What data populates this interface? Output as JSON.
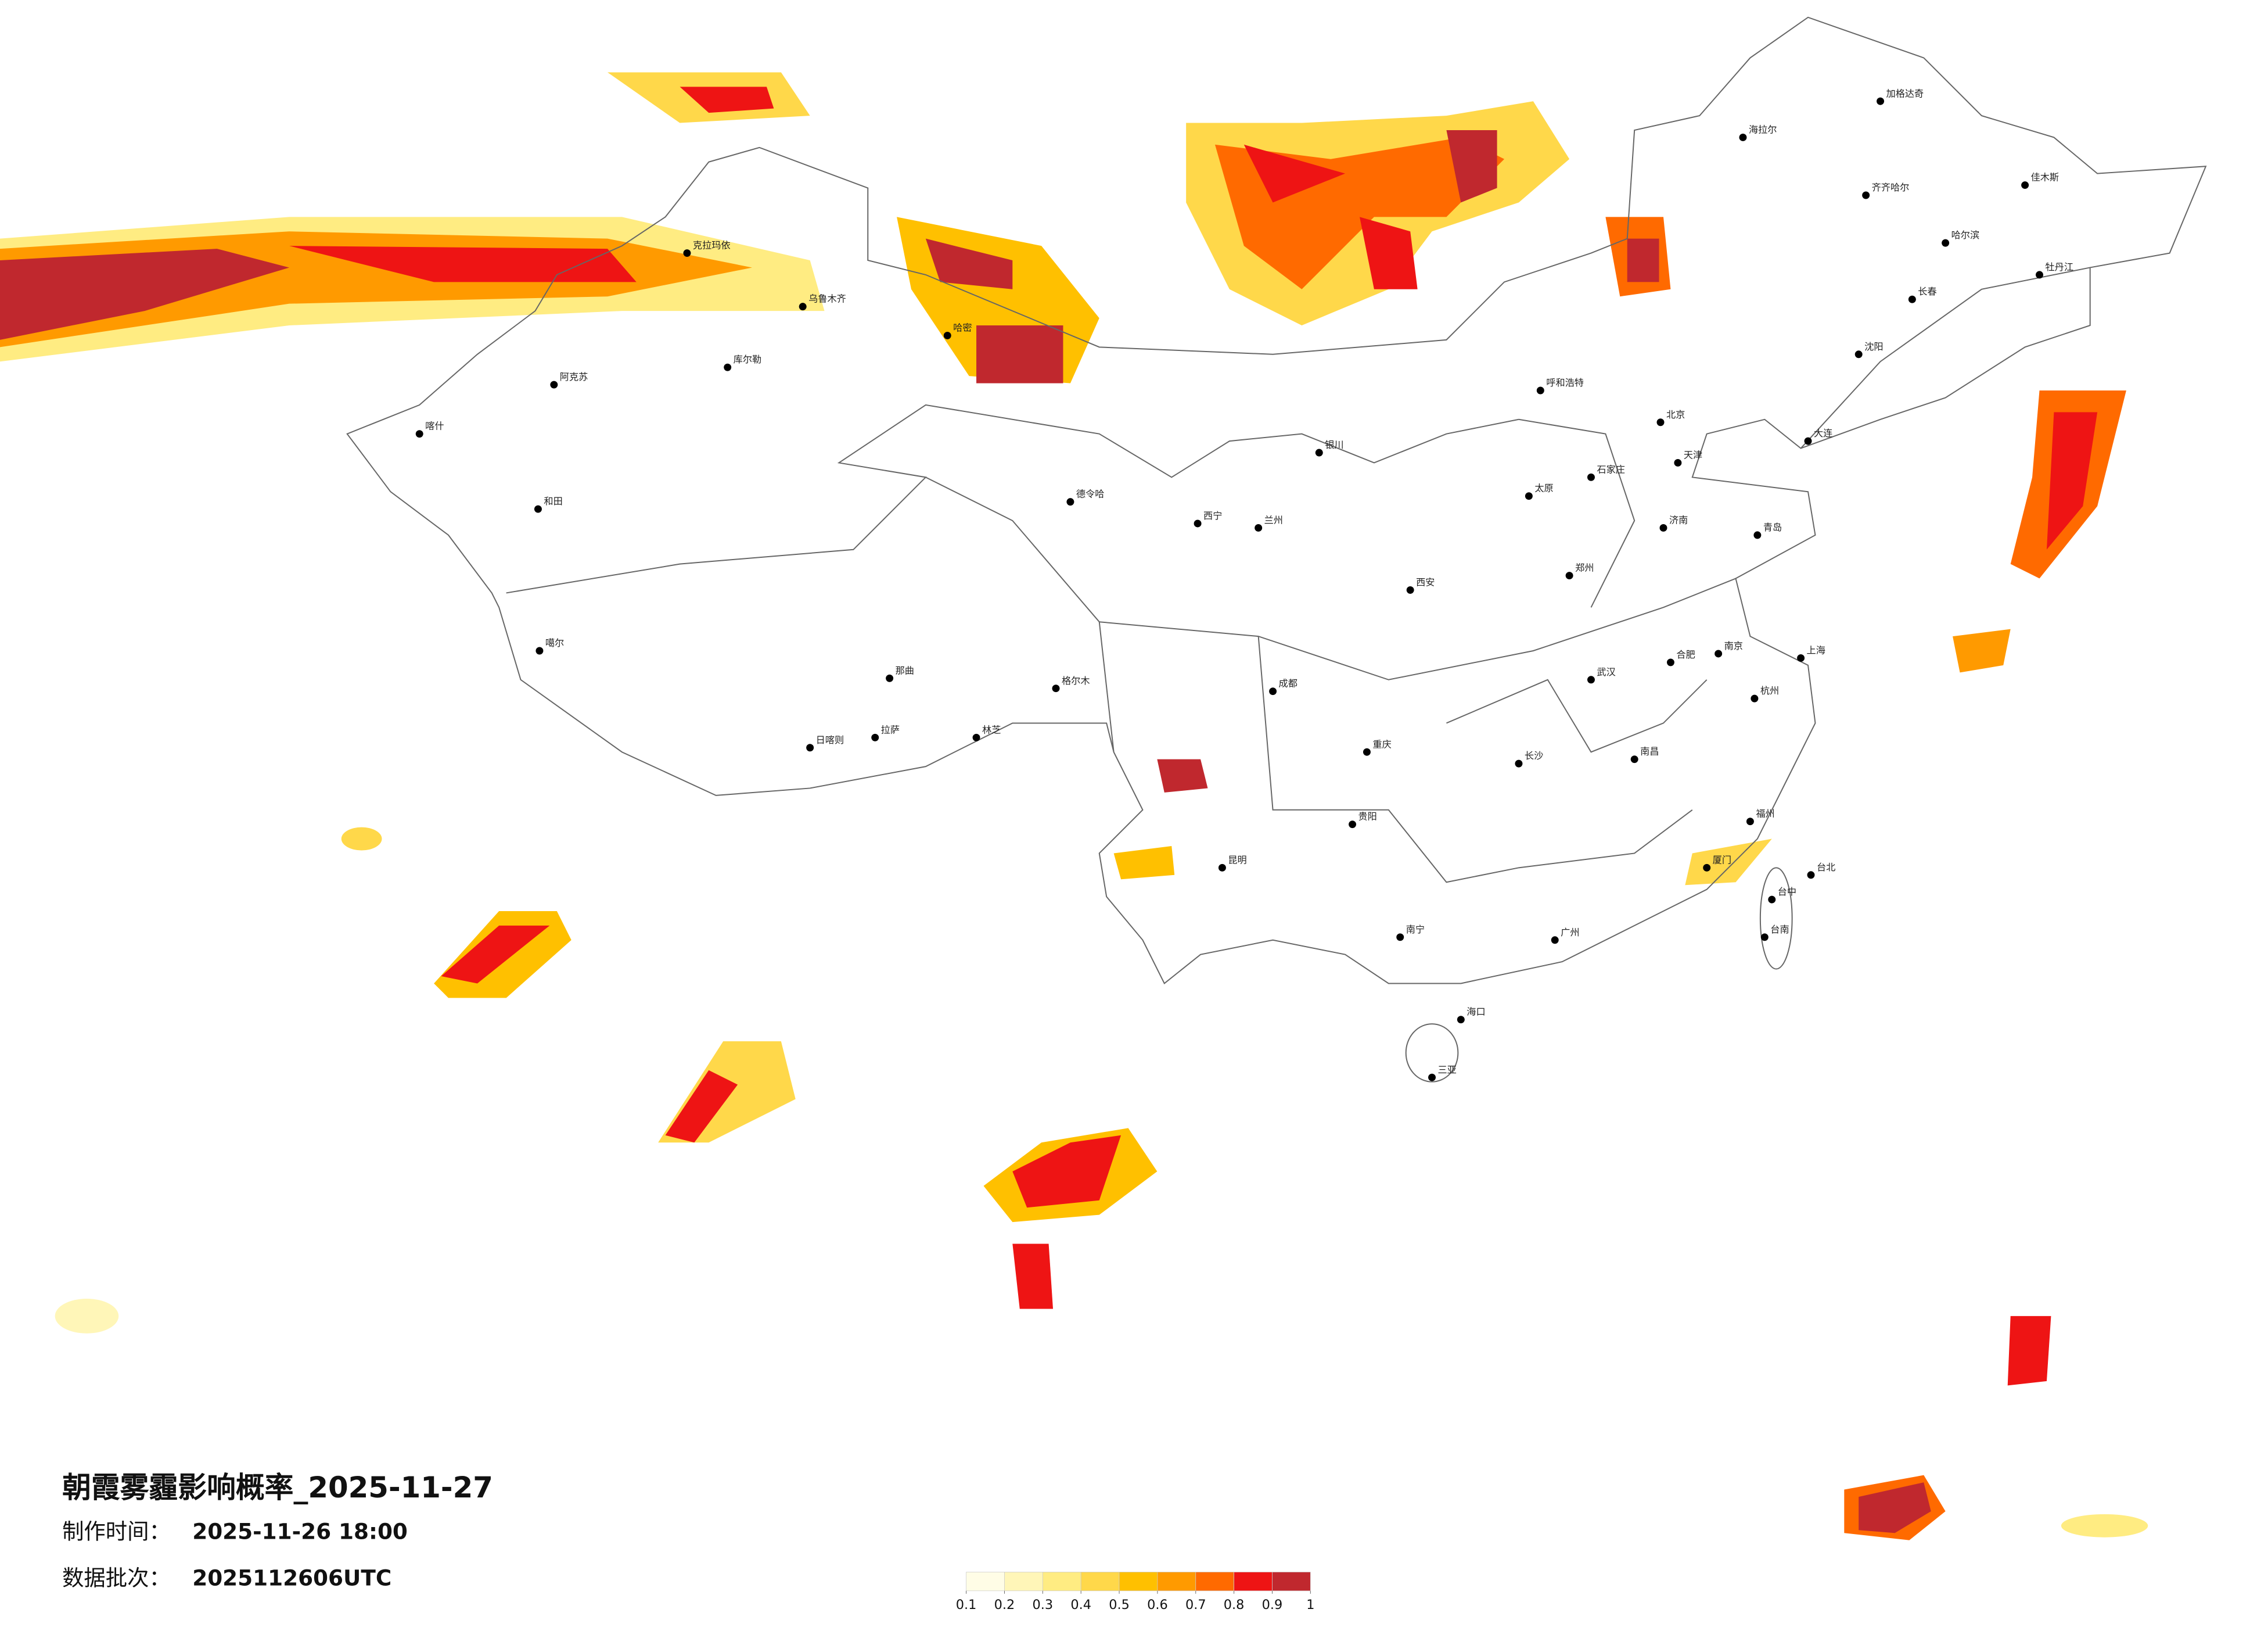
{
  "title": "朝霞雾霾影响概率_2025-11-27",
  "meta": {
    "production_label": "制作时间：",
    "production_time": "2025-11-26 18:00",
    "batch_label": "数据批次：",
    "batch": "2025112606UTC"
  },
  "colorbar": {
    "ticks": [
      0.1,
      0.2,
      0.3,
      0.4,
      0.5,
      0.6,
      0.7,
      0.8,
      0.9,
      1
    ],
    "colors": [
      "#fffde6",
      "#fff6b8",
      "#ffec82",
      "#ffd84a",
      "#ffc000",
      "#ff9a00",
      "#ff6a00",
      "#ee1414",
      "#c0282e"
    ]
  },
  "cities": [
    "乌鲁木齐",
    "克拉玛依",
    "喀什",
    "和田",
    "阿克苏",
    "库尔勒",
    "哈密",
    "拉萨",
    "日喀则",
    "林芝",
    "那曲",
    "噶尔",
    "格尔木",
    "德令哈",
    "西宁",
    "兰州",
    "银川",
    "呼和浩特",
    "北京",
    "天津",
    "石家庄",
    "太原",
    "济南",
    "郑州",
    "西安",
    "成都",
    "重庆",
    "贵阳",
    "昆明",
    "南宁",
    "广州",
    "长沙",
    "武汉",
    "南昌",
    "杭州",
    "上海",
    "南京",
    "合肥",
    "福州",
    "台北",
    "台中",
    "台南",
    "海口",
    "三亚",
    "哈尔滨",
    "长春",
    "沈阳",
    "大连",
    "海拉尔",
    "加格达奇",
    "齐齐哈尔",
    "佳木斯",
    "牡丹江",
    "青岛",
    "厦门"
  ]
}
